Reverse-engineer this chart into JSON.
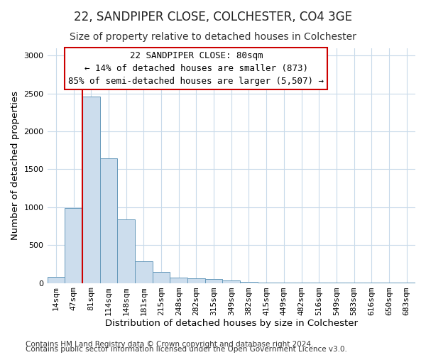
{
  "title": "22, SANDPIPER CLOSE, COLCHESTER, CO4 3GE",
  "subtitle": "Size of property relative to detached houses in Colchester",
  "xlabel": "Distribution of detached houses by size in Colchester",
  "ylabel": "Number of detached properties",
  "bar_color": "#ccdded",
  "bar_edge_color": "#6699bb",
  "annotation_line_color": "#cc0000",
  "annotation_box_color": "#cc0000",
  "annotation_line1": "22 SANDPIPER CLOSE: 80sqm",
  "annotation_line2": "← 14% of detached houses are smaller (873)",
  "annotation_line3": "85% of semi-detached houses are larger (5,507) →",
  "property_bin_index": 2,
  "categories": [
    "14sqm",
    "47sqm",
    "81sqm",
    "114sqm",
    "148sqm",
    "181sqm",
    "215sqm",
    "248sqm",
    "282sqm",
    "315sqm",
    "349sqm",
    "382sqm",
    "415sqm",
    "449sqm",
    "482sqm",
    "516sqm",
    "549sqm",
    "583sqm",
    "616sqm",
    "650sqm",
    "683sqm"
  ],
  "values": [
    80,
    990,
    2460,
    1640,
    840,
    285,
    145,
    70,
    60,
    55,
    30,
    18,
    10,
    7,
    5,
    3,
    2,
    2,
    1,
    1,
    1
  ],
  "ylim": [
    0,
    3100
  ],
  "yticks": [
    0,
    500,
    1000,
    1500,
    2000,
    2500,
    3000
  ],
  "footer1": "Contains HM Land Registry data © Crown copyright and database right 2024.",
  "footer2": "Contains public sector information licensed under the Open Government Licence v3.0.",
  "bg_color": "#ffffff",
  "grid_color": "#c8daea",
  "title_fontsize": 12,
  "subtitle_fontsize": 10,
  "axis_label_fontsize": 9.5,
  "tick_fontsize": 8,
  "footer_fontsize": 7.5,
  "annotation_fontsize": 9
}
